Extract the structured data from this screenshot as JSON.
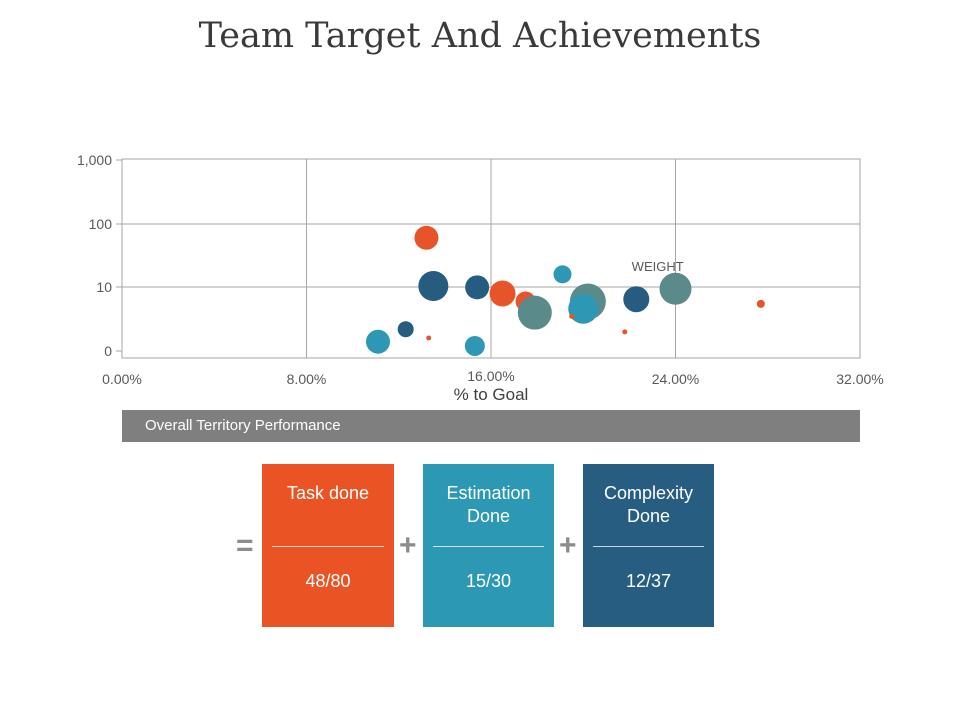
{
  "title": "Team Target And Achievements",
  "chart_data": {
    "type": "scatter",
    "xlabel": "% to Goal",
    "ylabel": "",
    "xlim": [
      0,
      32
    ],
    "x_ticks": [
      "0.00%",
      "8.00%",
      "16.00%",
      "24.00%",
      "32.00%"
    ],
    "y_scale": "log",
    "y_ticks": [
      "0",
      "10",
      "100",
      "1,000"
    ],
    "annotation": "WEIGHT",
    "colors": {
      "orange": "#E8542A",
      "teal": "#2E98B4",
      "navy": "#265C80",
      "slate": "#5A8A8A"
    },
    "points": [
      {
        "x": 13.2,
        "y": 60,
        "size": 12,
        "color": "orange"
      },
      {
        "x": 13.5,
        "y": 10.5,
        "size": 15,
        "color": "navy"
      },
      {
        "x": 15.4,
        "y": 10,
        "size": 12,
        "color": "navy"
      },
      {
        "x": 16.5,
        "y": 8,
        "size": 13,
        "color": "orange"
      },
      {
        "x": 17.5,
        "y": 6,
        "size": 10,
        "color": "orange"
      },
      {
        "x": 17.9,
        "y": 4,
        "size": 17,
        "color": "slate"
      },
      {
        "x": 19.1,
        "y": 16,
        "size": 9,
        "color": "teal"
      },
      {
        "x": 20.2,
        "y": 6,
        "size": 18,
        "color": "slate"
      },
      {
        "x": 20.0,
        "y": 4.6,
        "size": 15,
        "color": "teal"
      },
      {
        "x": 19.5,
        "y": 3.5,
        "size": 2.5,
        "color": "orange"
      },
      {
        "x": 22.3,
        "y": 6.5,
        "size": 13,
        "color": "navy"
      },
      {
        "x": 21.8,
        "y": 2,
        "size": 2.5,
        "color": "orange"
      },
      {
        "x": 24.0,
        "y": 9.5,
        "size": 16,
        "color": "slate"
      },
      {
        "x": 27.7,
        "y": 5.5,
        "size": 4,
        "color": "orange"
      },
      {
        "x": 11.1,
        "y": 1.4,
        "size": 12,
        "color": "teal"
      },
      {
        "x": 12.3,
        "y": 2.2,
        "size": 8,
        "color": "navy"
      },
      {
        "x": 13.3,
        "y": 1.6,
        "size": 2.5,
        "color": "orange"
      },
      {
        "x": 15.3,
        "y": 1.2,
        "size": 10,
        "color": "teal"
      }
    ]
  },
  "banner": {
    "label": "Overall Territory Performance"
  },
  "equation": {
    "equals": "=",
    "plus": "+",
    "cards": [
      {
        "label": "Task done",
        "value": "48/80",
        "color": "#EA5424"
      },
      {
        "label": "Estimation Done",
        "value": "15/30",
        "color": "#2C98B3"
      },
      {
        "label": "Complexity Done",
        "value": "12/37",
        "color": "#275D80"
      }
    ]
  }
}
